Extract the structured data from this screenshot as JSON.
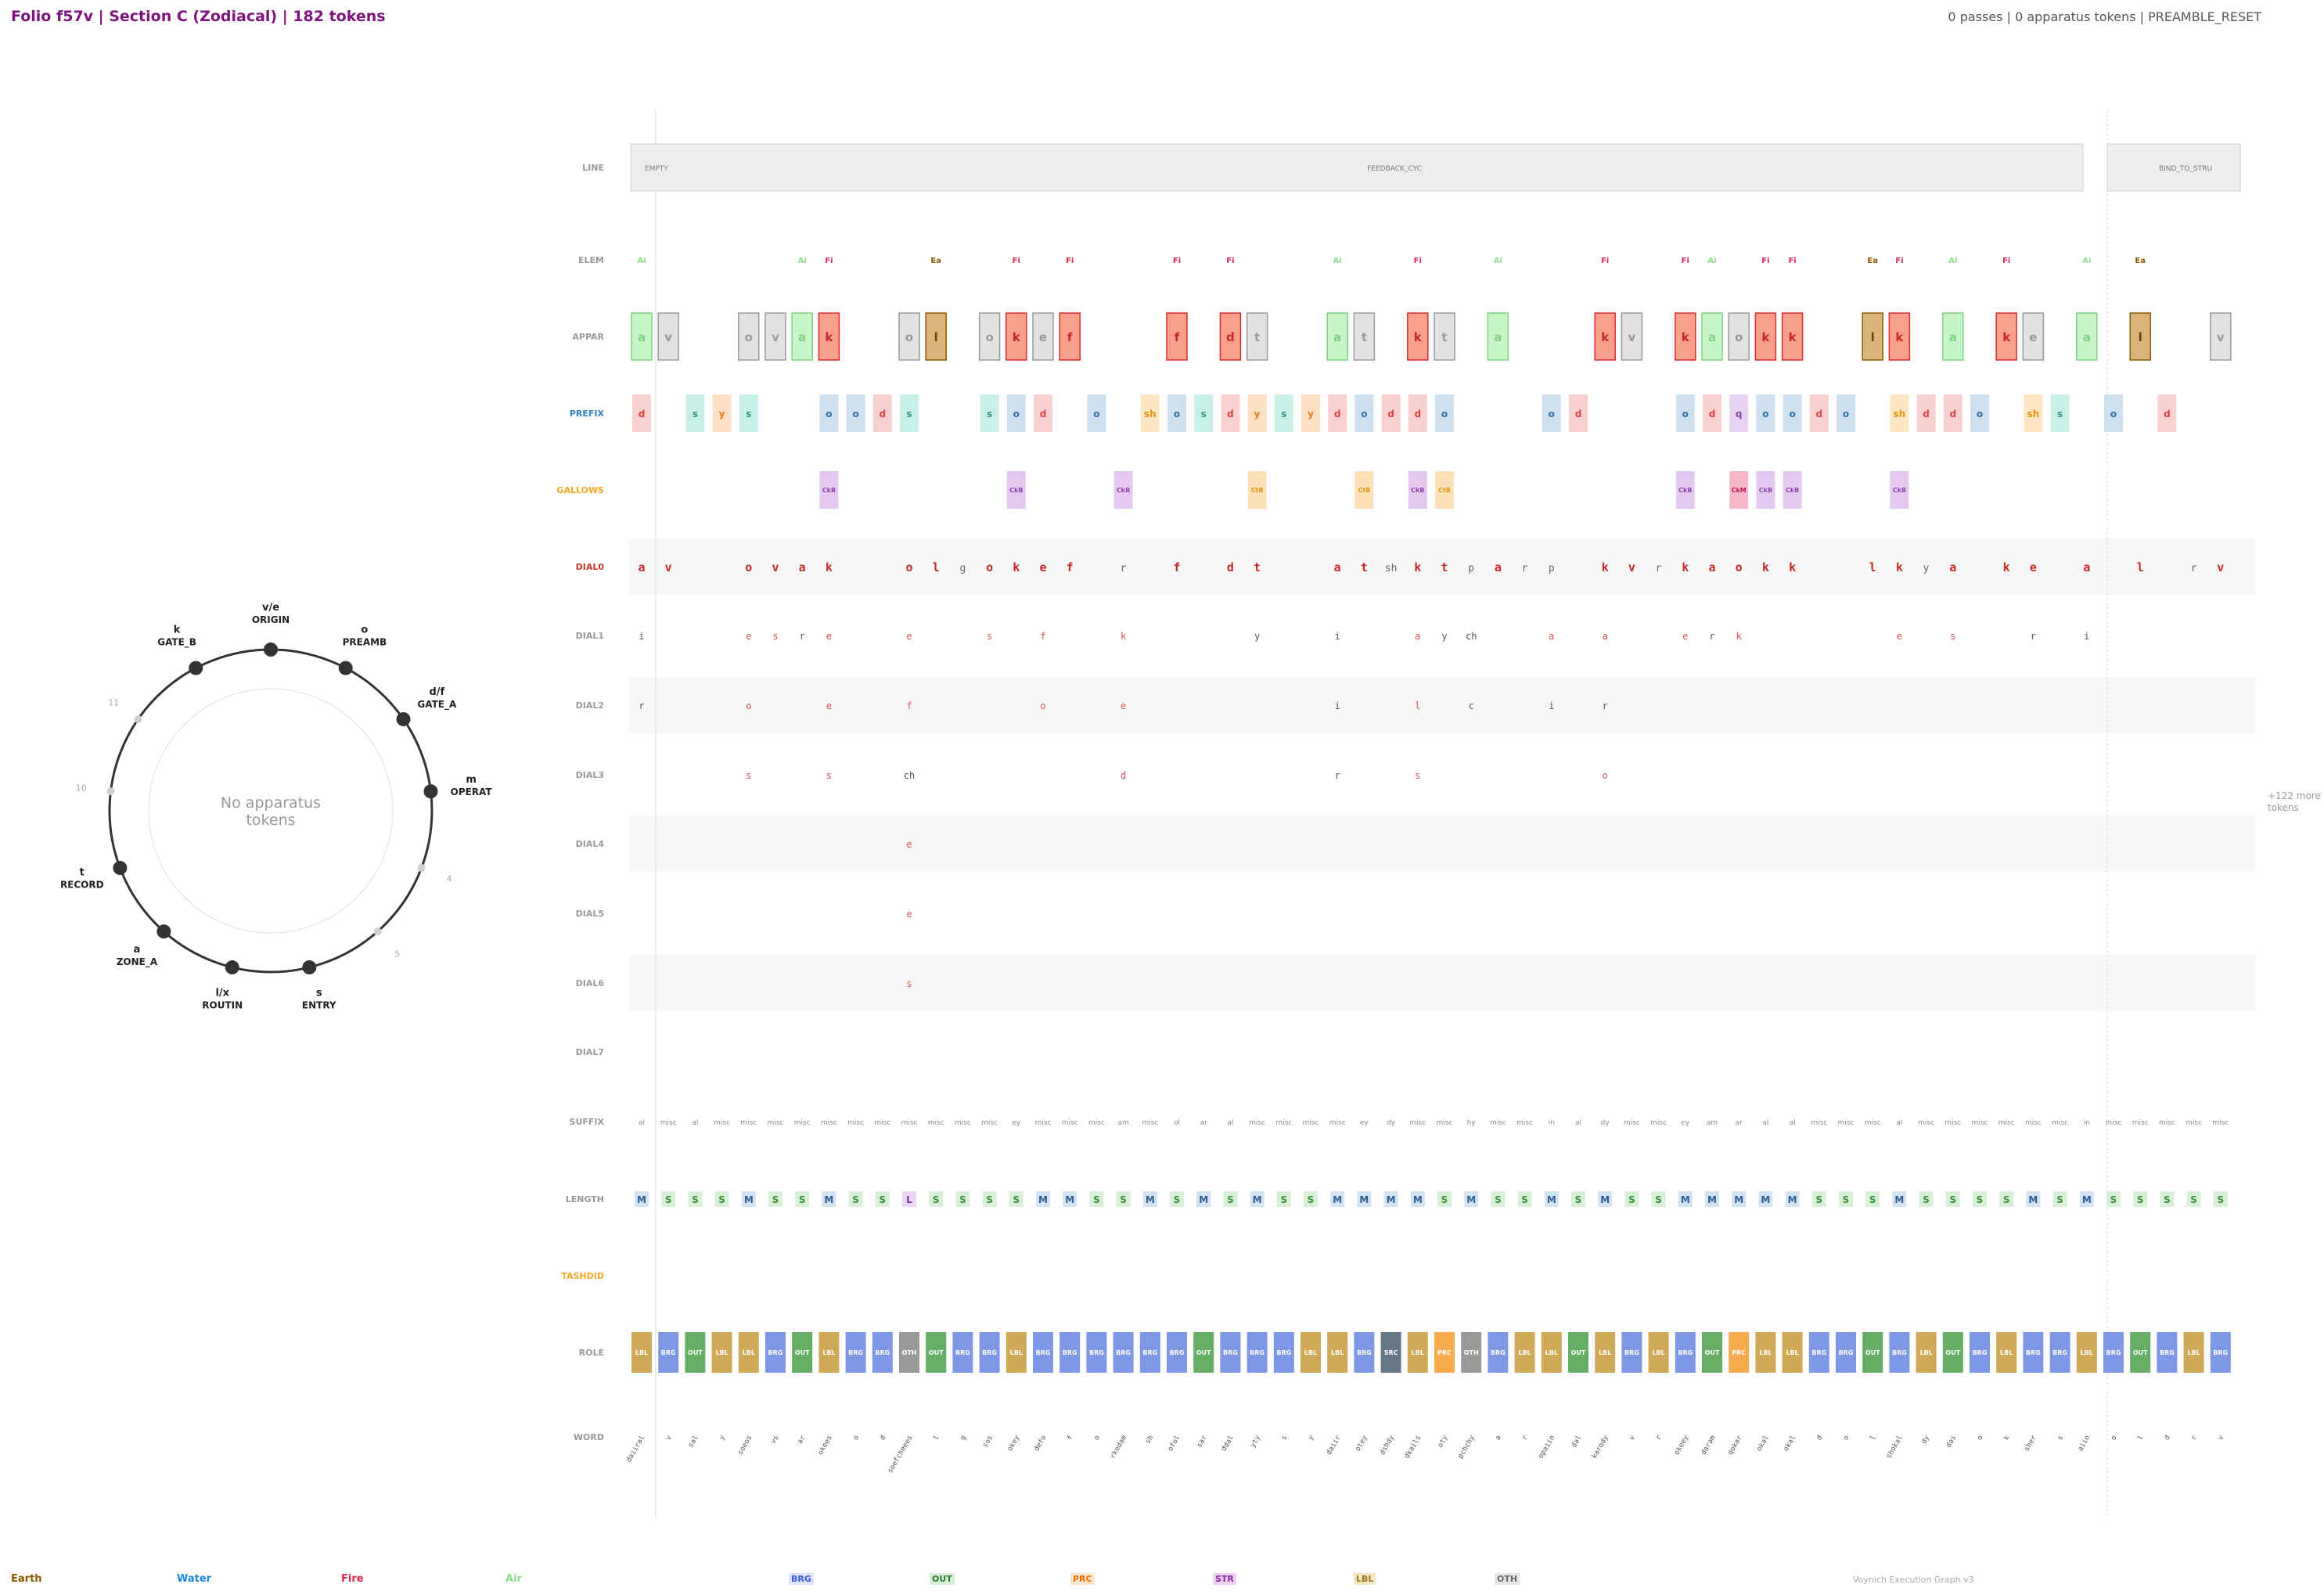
{
  "header": {
    "title": "Folio f57v  |  Section C (Zodiacal)  |  182 tokens",
    "status": "0 passes  |  0 apparatus tokens  |  PREAMBLE_RESET"
  },
  "rows": {
    "line": "LINE",
    "elem": "ELEM",
    "appar": "APPAR",
    "prefix": "PREFIX",
    "gallows": "GALLOWS",
    "dial0": "DIAL0",
    "dial1": "DIAL1",
    "dial2": "DIAL2",
    "dial3": "DIAL3",
    "dial4": "DIAL4",
    "dial5": "DIAL5",
    "dial6": "DIAL6",
    "dial7": "DIAL7",
    "suffix": "SUFFIX",
    "length": "LENGTH",
    "tashdid": "TASHDID",
    "role": "ROLE",
    "word": "WORD"
  },
  "line_segments": [
    "EMPTY",
    "FEEDBACK_CYC",
    "BIND_TO_STRU"
  ],
  "wheel": {
    "center_text": "No apparatus\ntokens",
    "nodes": [
      {
        "letter": "v/e",
        "name": "ORIGIN"
      },
      {
        "letter": "o",
        "name": "PREAMB"
      },
      {
        "letter": "d/f",
        "name": "GATE_A"
      },
      {
        "letter": "m",
        "name": "OPERAT"
      },
      {
        "letter": "4",
        "name": ""
      },
      {
        "letter": "5",
        "name": ""
      },
      {
        "letter": "s",
        "name": "ENTRY"
      },
      {
        "letter": "l/x",
        "name": "ROUTIN"
      },
      {
        "letter": "a",
        "name": "ZONE_A"
      },
      {
        "letter": "t",
        "name": "RECORD"
      },
      {
        "letter": "10",
        "name": ""
      },
      {
        "letter": "11",
        "name": ""
      },
      {
        "letter": "k",
        "name": "GATE_B"
      }
    ]
  },
  "more_tokens": "+122 more\ntokens",
  "footer": {
    "elements": [
      {
        "label": "Earth",
        "color": "#8b5a00"
      },
      {
        "label": "Water",
        "color": "#1e88e5"
      },
      {
        "label": "Fire",
        "color": "#e0284f"
      },
      {
        "label": "Air",
        "color": "#8fdc8f"
      }
    ],
    "roles": [
      {
        "label": "BRG",
        "color": "#3b5bdb",
        "bg": "#dde4fb"
      },
      {
        "label": "OUT",
        "color": "#2e7d32",
        "bg": "#d6efd6"
      },
      {
        "label": "PRC",
        "color": "#ef6c00",
        "bg": "#fde6cf"
      },
      {
        "label": "STR",
        "color": "#8e24aa",
        "bg": "#ecd3f3"
      },
      {
        "label": "LBL",
        "color": "#9a7a1e",
        "bg": "#f3e6c0"
      },
      {
        "label": "OTH",
        "color": "#666666",
        "bg": "#e5e5e5"
      }
    ],
    "credit": "Voynich Execution Graph v3"
  },
  "tokens": [
    {
      "word": "daiiral",
      "elem": "Ai",
      "appar": "a",
      "prefix": "d",
      "gallows": "",
      "d0": "a",
      "d1": "i",
      "d2": "r",
      "d3": "",
      "d4": "",
      "d5": "",
      "d6": "",
      "suffix": "al",
      "len": "M",
      "role": "LBL"
    },
    {
      "word": "v",
      "elem": "",
      "appar": "v",
      "prefix": "",
      "gallows": "",
      "d0": "v",
      "d1": "",
      "d2": "",
      "d3": "",
      "d4": "",
      "d5": "",
      "d6": "",
      "suffix": "misc",
      "len": "S",
      "role": "BRG"
    },
    {
      "word": "sal",
      "elem": "",
      "appar": "",
      "prefix": "s",
      "gallows": "",
      "d0": "",
      "d1": "",
      "d2": "",
      "d3": "",
      "d4": "",
      "d5": "",
      "d6": "",
      "suffix": "al",
      "len": "S",
      "role": "OUT"
    },
    {
      "word": "y",
      "elem": "",
      "appar": "",
      "prefix": "y",
      "gallows": "",
      "d0": "",
      "d1": "",
      "d2": "",
      "d3": "",
      "d4": "",
      "d5": "",
      "d6": "",
      "suffix": "misc",
      "len": "S",
      "role": "LBL"
    },
    {
      "word": "soeos",
      "elem": "",
      "appar": "o",
      "prefix": "s",
      "gallows": "",
      "d0": "o",
      "d1": "e",
      "d2": "o",
      "d3": "s",
      "d4": "",
      "d5": "",
      "d6": "",
      "suffix": "misc",
      "len": "M",
      "role": "LBL"
    },
    {
      "word": "vs",
      "elem": "",
      "appar": "v",
      "prefix": "",
      "gallows": "",
      "d0": "v",
      "d1": "s",
      "d2": "",
      "d3": "",
      "d4": "",
      "d5": "",
      "d6": "",
      "suffix": "misc",
      "len": "S",
      "role": "BRG"
    },
    {
      "word": "ar",
      "elem": "Ai",
      "appar": "a",
      "prefix": "",
      "gallows": "",
      "d0": "a",
      "d1": "r",
      "d2": "",
      "d3": "",
      "d4": "",
      "d5": "",
      "d6": "",
      "suffix": "misc",
      "len": "S",
      "role": "OUT"
    },
    {
      "word": "okees",
      "elem": "Fi",
      "appar": "k",
      "prefix": "o",
      "gallows": "CkB",
      "d0": "k",
      "d1": "e",
      "d2": "e",
      "d3": "s",
      "d4": "",
      "d5": "",
      "d6": "",
      "suffix": "misc",
      "len": "M",
      "role": "LBL"
    },
    {
      "word": "o",
      "elem": "",
      "appar": "",
      "prefix": "o",
      "gallows": "",
      "d0": "",
      "d1": "",
      "d2": "",
      "d3": "",
      "d4": "",
      "d5": "",
      "d6": "",
      "suffix": "misc",
      "len": "S",
      "role": "BRG"
    },
    {
      "word": "d",
      "elem": "",
      "appar": "",
      "prefix": "d",
      "gallows": "",
      "d0": "",
      "d1": "",
      "d2": "",
      "d3": "",
      "d4": "",
      "d5": "",
      "d6": "",
      "suffix": "misc",
      "len": "S",
      "role": "BRG"
    },
    {
      "word": "soefcheees",
      "elem": "",
      "appar": "o",
      "prefix": "s",
      "gallows": "",
      "d0": "o",
      "d1": "e",
      "d2": "f",
      "d3": "ch",
      "d4": "e",
      "d5": "e",
      "d6": "s",
      "suffix": "misc",
      "len": "L",
      "role": "OTH"
    },
    {
      "word": "l",
      "elem": "Ea",
      "appar": "l",
      "prefix": "",
      "gallows": "",
      "d0": "l",
      "d1": "",
      "d2": "",
      "d3": "",
      "d4": "",
      "d5": "",
      "d6": "",
      "suffix": "misc",
      "len": "S",
      "role": "OUT"
    },
    {
      "word": "g",
      "elem": "",
      "appar": "",
      "prefix": "",
      "gallows": "",
      "d0": "g",
      "d1": "",
      "d2": "",
      "d3": "",
      "d4": "",
      "d5": "",
      "d6": "",
      "suffix": "misc",
      "len": "S",
      "role": "BRG"
    },
    {
      "word": "sos",
      "elem": "",
      "appar": "o",
      "prefix": "s",
      "gallows": "",
      "d0": "o",
      "d1": "s",
      "d2": "",
      "d3": "",
      "d4": "",
      "d5": "",
      "d6": "",
      "suffix": "misc",
      "len": "S",
      "role": "BRG"
    },
    {
      "word": "okey",
      "elem": "Fi",
      "appar": "k",
      "prefix": "o",
      "gallows": "CkB",
      "d0": "k",
      "d1": "",
      "d2": "",
      "d3": "",
      "d4": "",
      "d5": "",
      "d6": "",
      "suffix": "ey",
      "len": "S",
      "role": "LBL"
    },
    {
      "word": "defo",
      "elem": "",
      "appar": "e",
      "prefix": "d",
      "gallows": "",
      "d0": "e",
      "d1": "f",
      "d2": "o",
      "d3": "",
      "d4": "",
      "d5": "",
      "d6": "",
      "suffix": "misc",
      "len": "M",
      "role": "BRG"
    },
    {
      "word": "f",
      "elem": "Fi",
      "appar": "f",
      "prefix": "",
      "gallows": "",
      "d0": "f",
      "d1": "",
      "d2": "",
      "d3": "",
      "d4": "",
      "d5": "",
      "d6": "",
      "suffix": "misc",
      "len": "M",
      "role": "BRG"
    },
    {
      "word": "o",
      "elem": "",
      "appar": "",
      "prefix": "o",
      "gallows": "",
      "d0": "",
      "d1": "",
      "d2": "",
      "d3": "",
      "d4": "",
      "d5": "",
      "d6": "",
      "suffix": "misc",
      "len": "S",
      "role": "BRG"
    },
    {
      "word": "rkedam",
      "elem": "",
      "appar": "",
      "prefix": "",
      "gallows": "CkB",
      "d0": "r",
      "d1": "k",
      "d2": "e",
      "d3": "d",
      "d4": "",
      "d5": "",
      "d6": "",
      "suffix": "am",
      "len": "S",
      "role": "BRG"
    },
    {
      "word": "sh",
      "elem": "",
      "appar": "",
      "prefix": "sh",
      "gallows": "",
      "d0": "",
      "d1": "",
      "d2": "",
      "d3": "",
      "d4": "",
      "d5": "",
      "d6": "",
      "suffix": "misc",
      "len": "M",
      "role": "BRG"
    },
    {
      "word": "ofol",
      "elem": "Fi",
      "appar": "f",
      "prefix": "o",
      "gallows": "",
      "d0": "f",
      "d1": "",
      "d2": "",
      "d3": "",
      "d4": "",
      "d5": "",
      "d6": "",
      "suffix": "ol",
      "len": "S",
      "role": "BRG"
    },
    {
      "word": "sar",
      "elem": "",
      "appar": "",
      "prefix": "s",
      "gallows": "",
      "d0": "",
      "d1": "",
      "d2": "",
      "d3": "",
      "d4": "",
      "d5": "",
      "d6": "",
      "suffix": "ar",
      "len": "M",
      "role": "OUT"
    },
    {
      "word": "ddal",
      "elem": "Fi",
      "appar": "d",
      "prefix": "d",
      "gallows": "",
      "d0": "d",
      "d1": "",
      "d2": "",
      "d3": "",
      "d4": "",
      "d5": "",
      "d6": "",
      "suffix": "al",
      "len": "S",
      "role": "BRG"
    },
    {
      "word": "yty",
      "elem": "",
      "appar": "t",
      "prefix": "y",
      "gallows": "CtB",
      "d0": "t",
      "d1": "y",
      "d2": "",
      "d3": "",
      "d4": "",
      "d5": "",
      "d6": "",
      "suffix": "misc",
      "len": "M",
      "role": "BRG"
    },
    {
      "word": "s",
      "elem": "",
      "appar": "",
      "prefix": "s",
      "gallows": "",
      "d0": "",
      "d1": "",
      "d2": "",
      "d3": "",
      "d4": "",
      "d5": "",
      "d6": "",
      "suffix": "misc",
      "len": "S",
      "role": "BRG"
    },
    {
      "word": "y",
      "elem": "",
      "appar": "",
      "prefix": "y",
      "gallows": "",
      "d0": "",
      "d1": "",
      "d2": "",
      "d3": "",
      "d4": "",
      "d5": "",
      "d6": "",
      "suffix": "misc",
      "len": "S",
      "role": "LBL"
    },
    {
      "word": "daiir",
      "elem": "Ai",
      "appar": "a",
      "prefix": "d",
      "gallows": "",
      "d0": "a",
      "d1": "i",
      "d2": "i",
      "d3": "r",
      "d4": "",
      "d5": "",
      "d6": "",
      "suffix": "misc",
      "len": "M",
      "role": "LBL"
    },
    {
      "word": "otey",
      "elem": "",
      "appar": "t",
      "prefix": "o",
      "gallows": "CtB",
      "d0": "t",
      "d1": "",
      "d2": "",
      "d3": "",
      "d4": "",
      "d5": "",
      "d6": "",
      "suffix": "ey",
      "len": "M",
      "role": "BRG"
    },
    {
      "word": "dshdy",
      "elem": "",
      "appar": "",
      "prefix": "d",
      "gallows": "",
      "d0": "sh",
      "d1": "",
      "d2": "",
      "d3": "",
      "d4": "",
      "d5": "",
      "d6": "",
      "suffix": "dy",
      "len": "M",
      "role": "SRC"
    },
    {
      "word": "dkails",
      "elem": "Fi",
      "appar": "k",
      "prefix": "d",
      "gallows": "CkB",
      "d0": "k",
      "d1": "a",
      "d2": "l",
      "d3": "s",
      "d4": "",
      "d5": "",
      "d6": "",
      "suffix": "misc",
      "len": "M",
      "role": "LBL"
    },
    {
      "word": "oty",
      "elem": "",
      "appar": "t",
      "prefix": "o",
      "gallows": "CtB",
      "d0": "t",
      "d1": "y",
      "d2": "",
      "d3": "",
      "d4": "",
      "d5": "",
      "d6": "",
      "suffix": "misc",
      "len": "S",
      "role": "PRC"
    },
    {
      "word": "pchchy",
      "elem": "",
      "appar": "",
      "prefix": "",
      "gallows": "",
      "d0": "p",
      "d1": "ch",
      "d2": "c",
      "d3": "",
      "d4": "",
      "d5": "",
      "d6": "",
      "suffix": "hy",
      "len": "M",
      "role": "OTH"
    },
    {
      "word": "a",
      "elem": "Ai",
      "appar": "a",
      "prefix": "",
      "gallows": "",
      "d0": "a",
      "d1": "",
      "d2": "",
      "d3": "",
      "d4": "",
      "d5": "",
      "d6": "",
      "suffix": "misc",
      "len": "S",
      "role": "BRG"
    },
    {
      "word": "r",
      "elem": "",
      "appar": "",
      "prefix": "",
      "gallows": "",
      "d0": "r",
      "d1": "",
      "d2": "",
      "d3": "",
      "d4": "",
      "d5": "",
      "d6": "",
      "suffix": "misc",
      "len": "S",
      "role": "LBL"
    },
    {
      "word": "opaiin",
      "elem": "",
      "appar": "",
      "prefix": "o",
      "gallows": "",
      "d0": "p",
      "d1": "a",
      "d2": "i",
      "d3": "",
      "d4": "",
      "d5": "",
      "d6": "",
      "suffix": "in",
      "len": "M",
      "role": "LBL"
    },
    {
      "word": "dal",
      "elem": "",
      "appar": "",
      "prefix": "d",
      "gallows": "",
      "d0": "",
      "d1": "",
      "d2": "",
      "d3": "",
      "d4": "",
      "d5": "",
      "d6": "",
      "suffix": "al",
      "len": "S",
      "role": "OUT"
    },
    {
      "word": "karody",
      "elem": "Fi",
      "appar": "k",
      "prefix": "",
      "gallows": "",
      "d0": "k",
      "d1": "a",
      "d2": "r",
      "d3": "o",
      "d4": "",
      "d5": "",
      "d6": "",
      "suffix": "dy",
      "len": "M",
      "role": "LBL"
    },
    {
      "word": "v",
      "elem": "",
      "appar": "v",
      "prefix": "",
      "gallows": "",
      "d0": "v",
      "d1": "",
      "d2": "",
      "d3": "",
      "d4": "",
      "d5": "",
      "d6": "",
      "suffix": "misc",
      "len": "S",
      "role": "BRG"
    },
    {
      "word": "r",
      "elem": "",
      "appar": "",
      "prefix": "",
      "gallows": "",
      "d0": "r",
      "d1": "",
      "d2": "",
      "d3": "",
      "d4": "",
      "d5": "",
      "d6": "",
      "suffix": "misc",
      "len": "S",
      "role": "LBL"
    },
    {
      "word": "okeey",
      "elem": "Fi",
      "appar": "k",
      "prefix": "o",
      "gallows": "CkB",
      "d0": "k",
      "d1": "e",
      "d2": "",
      "d3": "",
      "d4": "",
      "d5": "",
      "d6": "",
      "suffix": "ey",
      "len": "M",
      "role": "BRG"
    },
    {
      "word": "daram",
      "elem": "Ai",
      "appar": "a",
      "prefix": "d",
      "gallows": "",
      "d0": "a",
      "d1": "r",
      "d2": "",
      "d3": "",
      "d4": "",
      "d5": "",
      "d6": "",
      "suffix": "am",
      "len": "M",
      "role": "OUT"
    },
    {
      "word": "qokar",
      "elem": "",
      "appar": "o",
      "prefix": "q",
      "gallows": "CkM",
      "d0": "o",
      "d1": "k",
      "d2": "",
      "d3": "",
      "d4": "",
      "d5": "",
      "d6": "",
      "suffix": "ar",
      "len": "M",
      "role": "PRC"
    },
    {
      "word": "okal",
      "elem": "Fi",
      "appar": "k",
      "prefix": "o",
      "gallows": "CkB",
      "d0": "k",
      "d1": "",
      "d2": "",
      "d3": "",
      "d4": "",
      "d5": "",
      "d6": "",
      "suffix": "al",
      "len": "M",
      "role": "LBL"
    },
    {
      "word": "okal",
      "elem": "Fi",
      "appar": "k",
      "prefix": "o",
      "gallows": "CkB",
      "d0": "k",
      "d1": "",
      "d2": "",
      "d3": "",
      "d4": "",
      "d5": "",
      "d6": "",
      "suffix": "al",
      "len": "M",
      "role": "LBL"
    },
    {
      "word": "d",
      "elem": "",
      "appar": "",
      "prefix": "d",
      "gallows": "",
      "d0": "",
      "d1": "",
      "d2": "",
      "d3": "",
      "d4": "",
      "d5": "",
      "d6": "",
      "suffix": "misc",
      "len": "S",
      "role": "BRG"
    },
    {
      "word": "o",
      "elem": "",
      "appar": "",
      "prefix": "o",
      "gallows": "",
      "d0": "",
      "d1": "",
      "d2": "",
      "d3": "",
      "d4": "",
      "d5": "",
      "d6": "",
      "suffix": "misc",
      "len": "S",
      "role": "BRG"
    },
    {
      "word": "l",
      "elem": "Ea",
      "appar": "l",
      "prefix": "",
      "gallows": "",
      "d0": "l",
      "d1": "",
      "d2": "",
      "d3": "",
      "d4": "",
      "d5": "",
      "d6": "",
      "suffix": "misc",
      "len": "S",
      "role": "OUT"
    },
    {
      "word": "shokal",
      "elem": "Fi",
      "appar": "k",
      "prefix": "sh",
      "gallows": "CkB",
      "d0": "k",
      "d1": "e",
      "d2": "",
      "d3": "",
      "d4": "",
      "d5": "",
      "d6": "",
      "suffix": "al",
      "len": "M",
      "role": "BRG"
    },
    {
      "word": "dy",
      "elem": "",
      "appar": "",
      "prefix": "d",
      "gallows": "",
      "d0": "y",
      "d1": "",
      "d2": "",
      "d3": "",
      "d4": "",
      "d5": "",
      "d6": "",
      "suffix": "misc",
      "len": "S",
      "role": "LBL"
    },
    {
      "word": "das",
      "elem": "Ai",
      "appar": "a",
      "prefix": "d",
      "gallows": "",
      "d0": "a",
      "d1": "s",
      "d2": "",
      "d3": "",
      "d4": "",
      "d5": "",
      "d6": "",
      "suffix": "misc",
      "len": "S",
      "role": "OUT"
    },
    {
      "word": "o",
      "elem": "",
      "appar": "",
      "prefix": "o",
      "gallows": "",
      "d0": "",
      "d1": "",
      "d2": "",
      "d3": "",
      "d4": "",
      "d5": "",
      "d6": "",
      "suffix": "misc",
      "len": "S",
      "role": "BRG"
    },
    {
      "word": "k",
      "elem": "Fi",
      "appar": "k",
      "prefix": "",
      "gallows": "",
      "d0": "k",
      "d1": "",
      "d2": "",
      "d3": "",
      "d4": "",
      "d5": "",
      "d6": "",
      "suffix": "misc",
      "len": "S",
      "role": "LBL"
    },
    {
      "word": "sher",
      "elem": "",
      "appar": "e",
      "prefix": "sh",
      "gallows": "",
      "d0": "e",
      "d1": "r",
      "d2": "",
      "d3": "",
      "d4": "",
      "d5": "",
      "d6": "",
      "suffix": "misc",
      "len": "M",
      "role": "BRG"
    },
    {
      "word": "s",
      "elem": "",
      "appar": "",
      "prefix": "s",
      "gallows": "",
      "d0": "",
      "d1": "",
      "d2": "",
      "d3": "",
      "d4": "",
      "d5": "",
      "d6": "",
      "suffix": "misc",
      "len": "S",
      "role": "BRG"
    },
    {
      "word": "aiin",
      "elem": "Ai",
      "appar": "a",
      "prefix": "",
      "gallows": "",
      "d0": "a",
      "d1": "i",
      "d2": "",
      "d3": "",
      "d4": "",
      "d5": "",
      "d6": "",
      "suffix": "in",
      "len": "M",
      "role": "LBL"
    },
    {
      "word": "o",
      "elem": "",
      "appar": "",
      "prefix": "o",
      "gallows": "",
      "d0": "",
      "d1": "",
      "d2": "",
      "d3": "",
      "d4": "",
      "d5": "",
      "d6": "",
      "suffix": "misc",
      "len": "S",
      "role": "BRG"
    },
    {
      "word": "l",
      "elem": "Ea",
      "appar": "l",
      "prefix": "",
      "gallows": "",
      "d0": "l",
      "d1": "",
      "d2": "",
      "d3": "",
      "d4": "",
      "d5": "",
      "d6": "",
      "suffix": "misc",
      "len": "S",
      "role": "OUT"
    },
    {
      "word": "d",
      "elem": "",
      "appar": "",
      "prefix": "d",
      "gallows": "",
      "d0": "",
      "d1": "",
      "d2": "",
      "d3": "",
      "d4": "",
      "d5": "",
      "d6": "",
      "suffix": "misc",
      "len": "S",
      "role": "BRG"
    },
    {
      "word": "r",
      "elem": "",
      "appar": "",
      "prefix": "",
      "gallows": "",
      "d0": "r",
      "d1": "",
      "d2": "",
      "d3": "",
      "d4": "",
      "d5": "",
      "d6": "",
      "suffix": "misc",
      "len": "S",
      "role": "LBL"
    },
    {
      "word": "v",
      "elem": "",
      "appar": "v",
      "prefix": "",
      "gallows": "",
      "d0": "v",
      "d1": "",
      "d2": "",
      "d3": "",
      "d4": "",
      "d5": "",
      "d6": "",
      "suffix": "misc",
      "len": "S",
      "role": "BRG"
    }
  ]
}
